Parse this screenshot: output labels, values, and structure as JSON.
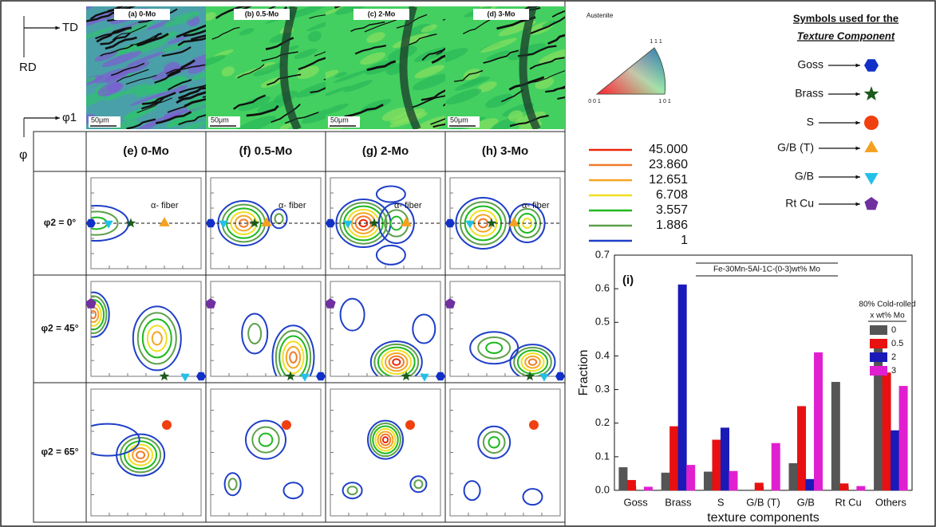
{
  "axes_labels": {
    "td": "TD",
    "rd": "RD",
    "phi1": "φ1",
    "phi": "φ"
  },
  "micrographs": [
    {
      "title": "(a) 0-Mo",
      "scale": "50μm"
    },
    {
      "title": "(b) 0.5-Mo",
      "scale": "50μm"
    },
    {
      "title": "(c) 2-Mo",
      "scale": "50μm"
    },
    {
      "title": "(d) 3-Mo",
      "scale": "50μm"
    }
  ],
  "ipf": {
    "title": "Austenite",
    "corners": [
      "1 1 1",
      "0 0 1",
      "1 0 1"
    ]
  },
  "contour_legend": [
    {
      "label": "45.000",
      "color": "#e8280c"
    },
    {
      "label": "23.860",
      "color": "#f07a2a"
    },
    {
      "label": "12.651",
      "color": "#f5a623"
    },
    {
      "label": "6.708",
      "color": "#efe020"
    },
    {
      "label": "3.557",
      "color": "#1fb81f"
    },
    {
      "label": "1.886",
      "color": "#5ea04a"
    },
    {
      "label": "1",
      "color": "#1f3fc8"
    }
  ],
  "symbols": {
    "title": "Symbols used for the",
    "subtitle": "Texture Component",
    "items": [
      "Goss",
      "Brass",
      "S",
      "G/B (T)",
      "G/B",
      "Rt Cu"
    ]
  },
  "odf": {
    "columns": [
      "(e) 0-Mo",
      "(f) 0.5-Mo",
      "(g) 2-Mo",
      "(h) 3-Mo"
    ],
    "rows": [
      "φ2 = 0°",
      "φ2 = 45°",
      "φ2 = 65°"
    ],
    "annotation": "α- fiber"
  },
  "chart_data": {
    "type": "bar",
    "title": "Fe-30Mn-5Al-1C-(0-3)wt% Mo",
    "panel_label": "(i)",
    "legend_title": [
      "80% Cold-rolled",
      "x wt% Mo"
    ],
    "x_label": "texture components",
    "y_label": "Fraction",
    "categories": [
      "Goss",
      "Brass",
      "S",
      "G/B (T)",
      "G/B",
      "Rt Cu",
      "Others"
    ],
    "series": [
      {
        "name": "0",
        "color": "#555555",
        "values": [
          0.068,
          0.052,
          0.055,
          0,
          0.08,
          0.322,
          0.437
        ]
      },
      {
        "name": "0.5",
        "color": "#e81010",
        "values": [
          0.03,
          0.19,
          0.15,
          0.022,
          0.25,
          0.02,
          0.35
        ]
      },
      {
        "name": "2",
        "color": "#1a1ab8",
        "values": [
          0,
          0.612,
          0.186,
          0,
          0.033,
          0,
          0.178
        ]
      },
      {
        "name": "3",
        "color": "#e020d0",
        "values": [
          0.01,
          0.075,
          0.057,
          0.14,
          0.41,
          0.012,
          0.31
        ]
      }
    ],
    "ylim": [
      0,
      0.7
    ],
    "yticks": [
      {
        "value": 0,
        "label": "0.0"
      },
      0.1,
      0.2,
      0.3,
      0.4,
      0.5,
      0.6,
      0.7
    ],
    "legend": "upper right"
  }
}
